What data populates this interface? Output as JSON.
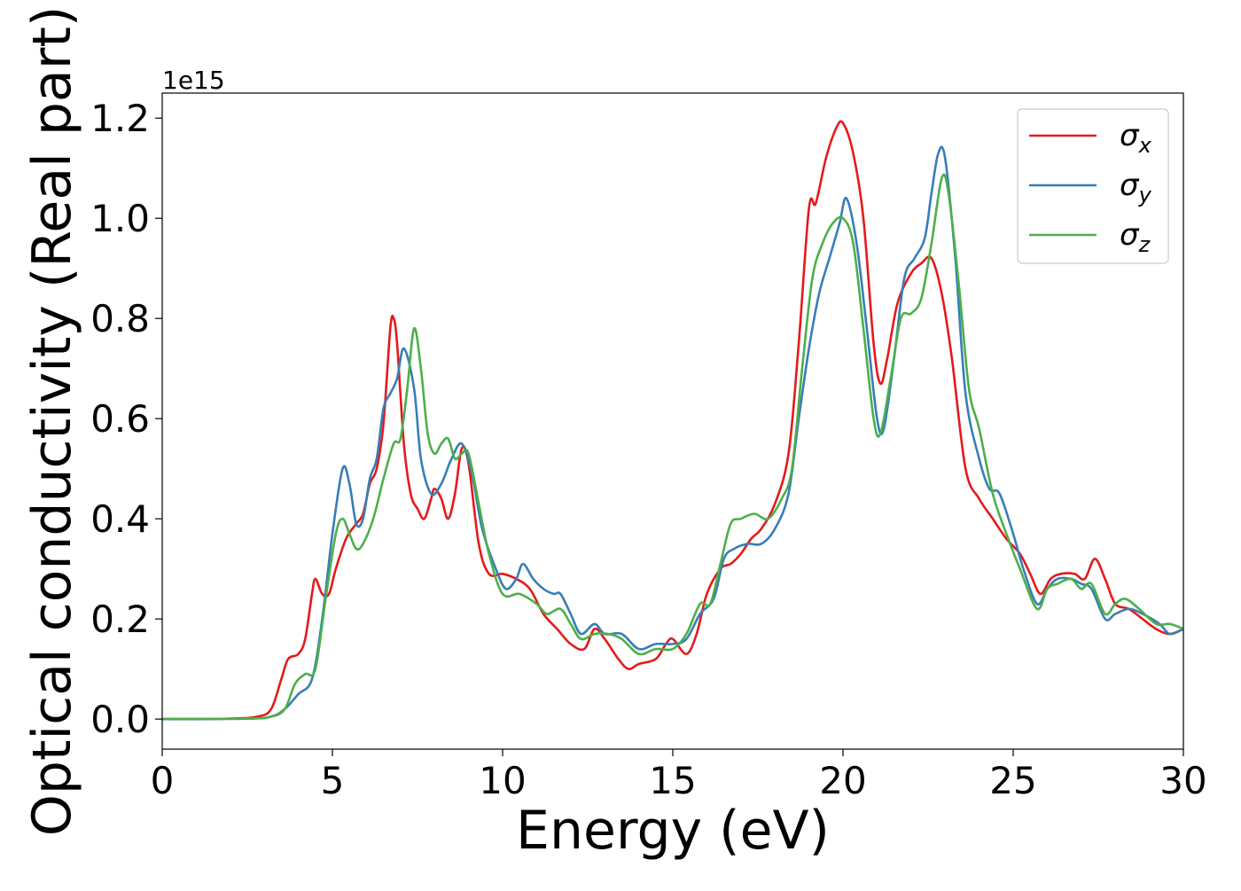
{
  "chart_data": {
    "type": "line",
    "title": "",
    "xlabel": "Energy (eV)",
    "ylabel": "Optical conductivity (Real part)",
    "y_offset_label": "1e15",
    "xlim": [
      0,
      30
    ],
    "ylim": [
      -0.06,
      1.25
    ],
    "xticks": [
      0,
      5,
      10,
      15,
      20,
      25,
      30
    ],
    "xtick_labels": [
      "0",
      "5",
      "10",
      "15",
      "20",
      "25",
      "30"
    ],
    "yticks": [
      0.0,
      0.2,
      0.4,
      0.6,
      0.8,
      1.0,
      1.2
    ],
    "ytick_labels": [
      "0.0",
      "0.2",
      "0.4",
      "0.6",
      "0.8",
      "1.0",
      "1.2"
    ],
    "grid": false,
    "legend_position": "top-right",
    "series": [
      {
        "name": "σ",
        "subscript": "x",
        "color": "#e41a1c",
        "points": [
          [
            0,
            0
          ],
          [
            2,
            0.001
          ],
          [
            2.8,
            0.005
          ],
          [
            3.2,
            0.02
          ],
          [
            3.5,
            0.08
          ],
          [
            3.7,
            0.12
          ],
          [
            4.0,
            0.13
          ],
          [
            4.2,
            0.16
          ],
          [
            4.4,
            0.25
          ],
          [
            4.5,
            0.28
          ],
          [
            4.7,
            0.25
          ],
          [
            4.9,
            0.25
          ],
          [
            5.1,
            0.3
          ],
          [
            5.4,
            0.36
          ],
          [
            5.7,
            0.39
          ],
          [
            5.9,
            0.41
          ],
          [
            6.1,
            0.47
          ],
          [
            6.3,
            0.5
          ],
          [
            6.5,
            0.59
          ],
          [
            6.7,
            0.78
          ],
          [
            6.8,
            0.8
          ],
          [
            6.9,
            0.75
          ],
          [
            7.1,
            0.55
          ],
          [
            7.3,
            0.45
          ],
          [
            7.5,
            0.42
          ],
          [
            7.7,
            0.4
          ],
          [
            7.9,
            0.44
          ],
          [
            8.0,
            0.46
          ],
          [
            8.2,
            0.44
          ],
          [
            8.4,
            0.4
          ],
          [
            8.6,
            0.45
          ],
          [
            8.8,
            0.54
          ],
          [
            9.0,
            0.51
          ],
          [
            9.3,
            0.35
          ],
          [
            9.6,
            0.29
          ],
          [
            10.0,
            0.29
          ],
          [
            10.4,
            0.28
          ],
          [
            10.8,
            0.26
          ],
          [
            11.2,
            0.21
          ],
          [
            11.6,
            0.18
          ],
          [
            12.0,
            0.15
          ],
          [
            12.4,
            0.14
          ],
          [
            12.7,
            0.18
          ],
          [
            13.0,
            0.16
          ],
          [
            13.4,
            0.12
          ],
          [
            13.7,
            0.1
          ],
          [
            14.0,
            0.11
          ],
          [
            14.5,
            0.12
          ],
          [
            14.8,
            0.15
          ],
          [
            15.0,
            0.16
          ],
          [
            15.4,
            0.13
          ],
          [
            15.7,
            0.17
          ],
          [
            16.0,
            0.25
          ],
          [
            16.4,
            0.3
          ],
          [
            16.7,
            0.31
          ],
          [
            17.0,
            0.33
          ],
          [
            17.3,
            0.36
          ],
          [
            17.6,
            0.38
          ],
          [
            18.0,
            0.43
          ],
          [
            18.4,
            0.53
          ],
          [
            18.7,
            0.75
          ],
          [
            19.0,
            1.02
          ],
          [
            19.2,
            1.03
          ],
          [
            19.5,
            1.12
          ],
          [
            19.8,
            1.18
          ],
          [
            20.0,
            1.19
          ],
          [
            20.3,
            1.13
          ],
          [
            20.6,
            1.0
          ],
          [
            20.9,
            0.75
          ],
          [
            21.1,
            0.67
          ],
          [
            21.3,
            0.72
          ],
          [
            21.6,
            0.83
          ],
          [
            22.0,
            0.89
          ],
          [
            22.3,
            0.91
          ],
          [
            22.6,
            0.92
          ],
          [
            22.9,
            0.85
          ],
          [
            23.2,
            0.72
          ],
          [
            23.6,
            0.5
          ],
          [
            24.0,
            0.44
          ],
          [
            24.4,
            0.4
          ],
          [
            24.8,
            0.36
          ],
          [
            25.2,
            0.33
          ],
          [
            25.5,
            0.29
          ],
          [
            25.8,
            0.25
          ],
          [
            26.1,
            0.28
          ],
          [
            26.4,
            0.29
          ],
          [
            26.8,
            0.29
          ],
          [
            27.1,
            0.28
          ],
          [
            27.4,
            0.32
          ],
          [
            27.7,
            0.28
          ],
          [
            28.0,
            0.23
          ],
          [
            28.4,
            0.22
          ],
          [
            28.8,
            0.2
          ],
          [
            29.2,
            0.18
          ],
          [
            29.6,
            0.17
          ],
          [
            30.0,
            0.18
          ]
        ]
      },
      {
        "name": "σ",
        "subscript": "y",
        "color": "#377eb8",
        "points": [
          [
            0,
            0
          ],
          [
            2.5,
            0.001
          ],
          [
            3.2,
            0.005
          ],
          [
            3.6,
            0.02
          ],
          [
            4.0,
            0.05
          ],
          [
            4.4,
            0.08
          ],
          [
            4.7,
            0.2
          ],
          [
            5.0,
            0.37
          ],
          [
            5.3,
            0.5
          ],
          [
            5.5,
            0.47
          ],
          [
            5.7,
            0.39
          ],
          [
            5.9,
            0.4
          ],
          [
            6.1,
            0.48
          ],
          [
            6.3,
            0.52
          ],
          [
            6.5,
            0.62
          ],
          [
            6.7,
            0.65
          ],
          [
            6.9,
            0.68
          ],
          [
            7.1,
            0.74
          ],
          [
            7.4,
            0.66
          ],
          [
            7.6,
            0.52
          ],
          [
            7.9,
            0.45
          ],
          [
            8.2,
            0.47
          ],
          [
            8.5,
            0.52
          ],
          [
            8.8,
            0.55
          ],
          [
            9.1,
            0.49
          ],
          [
            9.4,
            0.38
          ],
          [
            9.8,
            0.3
          ],
          [
            10.1,
            0.26
          ],
          [
            10.4,
            0.28
          ],
          [
            10.6,
            0.31
          ],
          [
            10.9,
            0.28
          ],
          [
            11.2,
            0.26
          ],
          [
            11.5,
            0.25
          ],
          [
            11.7,
            0.25
          ],
          [
            12.0,
            0.21
          ],
          [
            12.3,
            0.17
          ],
          [
            12.7,
            0.19
          ],
          [
            13.0,
            0.17
          ],
          [
            13.5,
            0.17
          ],
          [
            14.0,
            0.14
          ],
          [
            14.5,
            0.15
          ],
          [
            15.0,
            0.15
          ],
          [
            15.4,
            0.16
          ],
          [
            15.8,
            0.21
          ],
          [
            16.2,
            0.24
          ],
          [
            16.5,
            0.32
          ],
          [
            16.8,
            0.34
          ],
          [
            17.2,
            0.35
          ],
          [
            17.6,
            0.35
          ],
          [
            18.0,
            0.38
          ],
          [
            18.4,
            0.45
          ],
          [
            18.7,
            0.6
          ],
          [
            19.0,
            0.74
          ],
          [
            19.3,
            0.85
          ],
          [
            19.6,
            0.92
          ],
          [
            19.9,
            0.99
          ],
          [
            20.1,
            1.04
          ],
          [
            20.4,
            0.95
          ],
          [
            20.7,
            0.78
          ],
          [
            21.0,
            0.6
          ],
          [
            21.2,
            0.58
          ],
          [
            21.5,
            0.72
          ],
          [
            21.8,
            0.88
          ],
          [
            22.1,
            0.92
          ],
          [
            22.4,
            0.96
          ],
          [
            22.6,
            1.05
          ],
          [
            22.8,
            1.13
          ],
          [
            23.0,
            1.12
          ],
          [
            23.3,
            0.92
          ],
          [
            23.6,
            0.65
          ],
          [
            24.0,
            0.52
          ],
          [
            24.3,
            0.46
          ],
          [
            24.6,
            0.45
          ],
          [
            25.0,
            0.37
          ],
          [
            25.3,
            0.3
          ],
          [
            25.7,
            0.23
          ],
          [
            26.0,
            0.26
          ],
          [
            26.3,
            0.28
          ],
          [
            26.7,
            0.28
          ],
          [
            27.0,
            0.27
          ],
          [
            27.3,
            0.26
          ],
          [
            27.7,
            0.2
          ],
          [
            28.0,
            0.21
          ],
          [
            28.4,
            0.22
          ],
          [
            28.8,
            0.21
          ],
          [
            29.3,
            0.19
          ],
          [
            29.6,
            0.17
          ],
          [
            30.0,
            0.18
          ]
        ]
      },
      {
        "name": "σ",
        "subscript": "z",
        "color": "#4daf4a",
        "points": [
          [
            0,
            0
          ],
          [
            2.5,
            0.001
          ],
          [
            3.2,
            0.005
          ],
          [
            3.6,
            0.02
          ],
          [
            3.9,
            0.07
          ],
          [
            4.2,
            0.09
          ],
          [
            4.5,
            0.1
          ],
          [
            4.8,
            0.24
          ],
          [
            5.1,
            0.37
          ],
          [
            5.3,
            0.4
          ],
          [
            5.5,
            0.37
          ],
          [
            5.7,
            0.34
          ],
          [
            5.9,
            0.35
          ],
          [
            6.2,
            0.4
          ],
          [
            6.5,
            0.48
          ],
          [
            6.8,
            0.55
          ],
          [
            7.0,
            0.56
          ],
          [
            7.2,
            0.66
          ],
          [
            7.4,
            0.78
          ],
          [
            7.6,
            0.7
          ],
          [
            7.8,
            0.57
          ],
          [
            8.0,
            0.53
          ],
          [
            8.2,
            0.55
          ],
          [
            8.4,
            0.56
          ],
          [
            8.6,
            0.52
          ],
          [
            8.8,
            0.53
          ],
          [
            9.0,
            0.53
          ],
          [
            9.3,
            0.43
          ],
          [
            9.6,
            0.33
          ],
          [
            10.0,
            0.25
          ],
          [
            10.5,
            0.25
          ],
          [
            11.0,
            0.23
          ],
          [
            11.3,
            0.21
          ],
          [
            11.7,
            0.22
          ],
          [
            12.0,
            0.19
          ],
          [
            12.3,
            0.16
          ],
          [
            12.7,
            0.17
          ],
          [
            13.1,
            0.17
          ],
          [
            13.5,
            0.16
          ],
          [
            14.0,
            0.13
          ],
          [
            14.5,
            0.14
          ],
          [
            15.0,
            0.14
          ],
          [
            15.4,
            0.17
          ],
          [
            15.8,
            0.23
          ],
          [
            16.1,
            0.23
          ],
          [
            16.4,
            0.31
          ],
          [
            16.7,
            0.39
          ],
          [
            17.0,
            0.4
          ],
          [
            17.4,
            0.41
          ],
          [
            17.8,
            0.4
          ],
          [
            18.2,
            0.44
          ],
          [
            18.5,
            0.5
          ],
          [
            18.8,
            0.7
          ],
          [
            19.1,
            0.88
          ],
          [
            19.4,
            0.95
          ],
          [
            19.7,
            0.99
          ],
          [
            20.0,
            1.0
          ],
          [
            20.3,
            0.95
          ],
          [
            20.6,
            0.78
          ],
          [
            20.9,
            0.6
          ],
          [
            21.1,
            0.57
          ],
          [
            21.4,
            0.68
          ],
          [
            21.7,
            0.8
          ],
          [
            22.0,
            0.81
          ],
          [
            22.3,
            0.84
          ],
          [
            22.6,
            0.95
          ],
          [
            22.9,
            1.08
          ],
          [
            23.1,
            1.05
          ],
          [
            23.4,
            0.87
          ],
          [
            23.7,
            0.66
          ],
          [
            24.0,
            0.58
          ],
          [
            24.4,
            0.45
          ],
          [
            24.8,
            0.37
          ],
          [
            25.2,
            0.3
          ],
          [
            25.7,
            0.22
          ],
          [
            26.0,
            0.26
          ],
          [
            26.3,
            0.27
          ],
          [
            26.7,
            0.28
          ],
          [
            27.0,
            0.26
          ],
          [
            27.3,
            0.27
          ],
          [
            27.7,
            0.21
          ],
          [
            28.0,
            0.23
          ],
          [
            28.3,
            0.24
          ],
          [
            28.7,
            0.22
          ],
          [
            29.2,
            0.19
          ],
          [
            29.6,
            0.19
          ],
          [
            30.0,
            0.18
          ]
        ]
      }
    ]
  }
}
